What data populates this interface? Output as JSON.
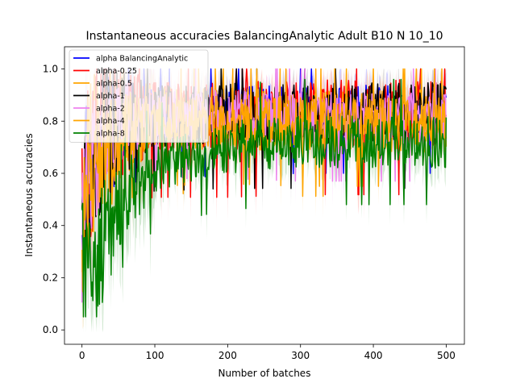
{
  "chart_data": {
    "type": "line",
    "title": "Instantaneous accuracies BalancingAnalytic Adult B10 N 10_10",
    "xlabel": "Number of batches",
    "ylabel": "Instantaneous accuracies",
    "xlim": [
      -24,
      525
    ],
    "ylim": [
      -0.055,
      1.085
    ],
    "xticks": [
      0,
      100,
      200,
      300,
      400,
      500
    ],
    "yticks": [
      0.0,
      0.2,
      0.4,
      0.6,
      0.8,
      1.0
    ],
    "xtick_labels": [
      "0",
      "100",
      "200",
      "300",
      "400",
      "500"
    ],
    "ytick_labels": [
      "0.0",
      "0.2",
      "0.4",
      "0.6",
      "0.8",
      "1.0"
    ],
    "grid": false,
    "legend_position": "upper-left",
    "n_points": 501,
    "series": [
      {
        "name": "alpha BalancingAnalytic",
        "color": "#0000ff",
        "shade_color": "#9999ff",
        "anchors": [
          [
            0,
            0.3
          ],
          [
            5,
            0.6
          ],
          [
            15,
            0.7
          ],
          [
            30,
            0.78
          ],
          [
            60,
            0.8
          ],
          [
            100,
            0.82
          ],
          [
            200,
            0.83
          ],
          [
            300,
            0.84
          ],
          [
            500,
            0.84
          ]
        ],
        "amplitude": 0.1
      },
      {
        "name": "alpha-0.25",
        "color": "#ff0000",
        "shade_color": "#ff9999",
        "anchors": [
          [
            0,
            0.35
          ],
          [
            5,
            0.6
          ],
          [
            15,
            0.7
          ],
          [
            30,
            0.78
          ],
          [
            60,
            0.8
          ],
          [
            100,
            0.82
          ],
          [
            200,
            0.82
          ],
          [
            300,
            0.83
          ],
          [
            500,
            0.83
          ]
        ],
        "amplitude": 0.13
      },
      {
        "name": "alpha-0.5",
        "color": "#ffa500",
        "shade_color": "#ffd699",
        "anchors": [
          [
            0,
            0.3
          ],
          [
            5,
            0.6
          ],
          [
            15,
            0.68
          ],
          [
            30,
            0.76
          ],
          [
            60,
            0.79
          ],
          [
            100,
            0.81
          ],
          [
            200,
            0.81
          ],
          [
            300,
            0.8
          ],
          [
            500,
            0.8
          ]
        ],
        "amplitude": 0.12
      },
      {
        "name": "alpha-1",
        "color": "#000000",
        "shade_color": "#bbbbbb",
        "anchors": [
          [
            0,
            0.3
          ],
          [
            5,
            0.55
          ],
          [
            15,
            0.68
          ],
          [
            30,
            0.76
          ],
          [
            60,
            0.8
          ],
          [
            100,
            0.82
          ],
          [
            200,
            0.83
          ],
          [
            300,
            0.83
          ],
          [
            500,
            0.83
          ]
        ],
        "amplitude": 0.12
      },
      {
        "name": "alpha-2",
        "color": "#ee82ee",
        "shade_color": "#f8cdf8",
        "anchors": [
          [
            0,
            0.3
          ],
          [
            5,
            0.55
          ],
          [
            15,
            0.65
          ],
          [
            30,
            0.74
          ],
          [
            60,
            0.79
          ],
          [
            100,
            0.82
          ],
          [
            200,
            0.82
          ],
          [
            300,
            0.81
          ],
          [
            500,
            0.81
          ]
        ],
        "amplitude": 0.1
      },
      {
        "name": "alpha-4",
        "color": "#ffa500",
        "shade_color": "#ffd699",
        "anchors": [
          [
            0,
            0.3
          ],
          [
            5,
            0.5
          ],
          [
            15,
            0.6
          ],
          [
            30,
            0.7
          ],
          [
            60,
            0.76
          ],
          [
            100,
            0.79
          ],
          [
            200,
            0.8
          ],
          [
            300,
            0.79
          ],
          [
            500,
            0.79
          ]
        ],
        "amplitude": 0.1
      },
      {
        "name": "alpha-8",
        "color": "#008000",
        "shade_color": "#99cc99",
        "anchors": [
          [
            0,
            0.25
          ],
          [
            10,
            0.2
          ],
          [
            20,
            0.25
          ],
          [
            40,
            0.4
          ],
          [
            60,
            0.5
          ],
          [
            80,
            0.58
          ],
          [
            100,
            0.62
          ],
          [
            150,
            0.67
          ],
          [
            200,
            0.7
          ],
          [
            300,
            0.72
          ],
          [
            500,
            0.72
          ]
        ],
        "amplitude": 0.1
      }
    ]
  }
}
